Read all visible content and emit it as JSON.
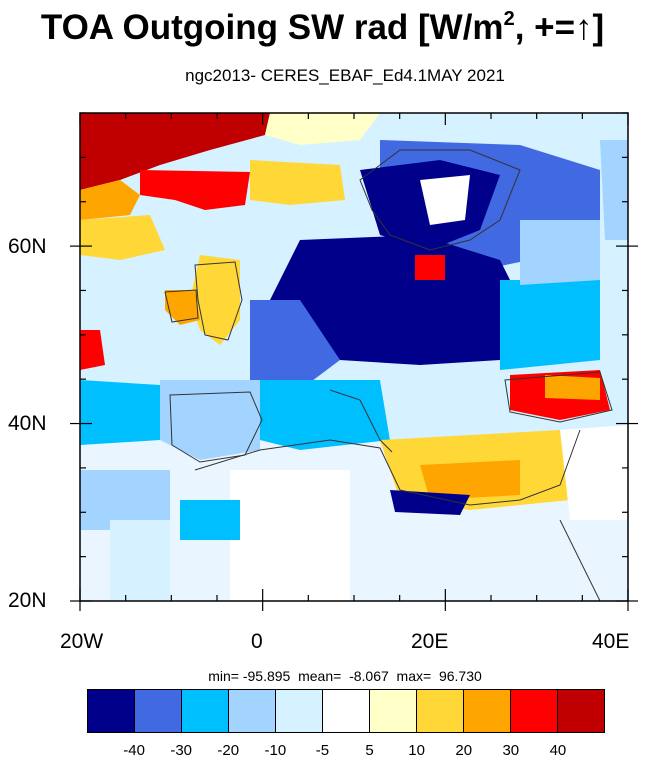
{
  "title": {
    "text": "TOA Outgoing SW rad [W/m",
    "sup": "2",
    "tail": ", +=",
    "arrow": "↑",
    "close": "]"
  },
  "subtitle": "ngc2013- CERES_EBAF_Ed4.1MAY 2021",
  "map": {
    "lon_range": [
      -20,
      40
    ],
    "lat_range": [
      20,
      75
    ],
    "y_tick_labels": [
      "20N",
      "40N",
      "60N"
    ],
    "x_tick_labels": [
      "20W",
      "0",
      "20E",
      "40E"
    ]
  },
  "stats": {
    "text": "min= -95.895  mean=  -8.067  max=  96.730"
  },
  "colorbar": {
    "colors": [
      "#00008b",
      "#4169e1",
      "#00bfff",
      "#a3d3ff",
      "#d6f1ff",
      "#ffffff",
      "#ffffc8",
      "#ffd837",
      "#ffa500",
      "#ff0000",
      "#c00000"
    ],
    "labels": [
      "-40",
      "-30",
      "-20",
      "-10",
      "-5",
      "5",
      "10",
      "20",
      "30",
      "40"
    ]
  }
}
